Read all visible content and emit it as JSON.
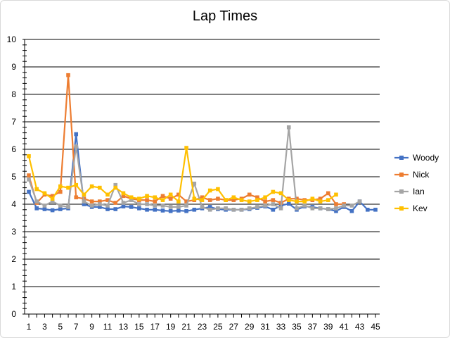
{
  "chart_data": {
    "type": "line",
    "title": "Lap Times",
    "xlabel": "",
    "ylabel": "",
    "xlim": [
      1,
      45
    ],
    "ylim": [
      0,
      10
    ],
    "y_ticks": [
      0,
      1,
      2,
      3,
      4,
      5,
      6,
      7,
      8,
      9,
      10
    ],
    "x_ticks": [
      1,
      3,
      5,
      7,
      9,
      11,
      13,
      15,
      17,
      19,
      21,
      23,
      25,
      27,
      29,
      31,
      33,
      35,
      37,
      39,
      41,
      43,
      45
    ],
    "grid": true,
    "legend": "right",
    "series": [
      {
        "name": "Woody",
        "color": "#4472c4",
        "marker": "square",
        "x": [
          1,
          2,
          3,
          4,
          5,
          6,
          7,
          8,
          9,
          10,
          11,
          12,
          13,
          14,
          15,
          16,
          17,
          18,
          19,
          20,
          21,
          22,
          23,
          24,
          25,
          26,
          27,
          28,
          29,
          30,
          31,
          32,
          33,
          34,
          35,
          36,
          37,
          38,
          39,
          40,
          41,
          42,
          43,
          44,
          45
        ],
        "values": [
          4.45,
          3.85,
          3.82,
          3.78,
          3.82,
          3.85,
          6.55,
          4.0,
          3.9,
          3.9,
          3.82,
          3.82,
          3.92,
          3.9,
          3.85,
          3.8,
          3.8,
          3.77,
          3.75,
          3.77,
          3.75,
          3.8,
          3.85,
          3.9,
          3.82,
          3.8,
          3.8,
          3.8,
          3.82,
          3.87,
          3.92,
          3.8,
          3.95,
          4.02,
          3.8,
          3.92,
          3.9,
          3.85,
          3.82,
          3.75,
          3.9,
          3.75,
          4.1,
          3.8,
          3.8
        ]
      },
      {
        "name": "Nick",
        "color": "#ed7d31",
        "marker": "square",
        "x": [
          1,
          2,
          3,
          4,
          5,
          6,
          7,
          8,
          9,
          10,
          11,
          12,
          13,
          14,
          15,
          16,
          17,
          18,
          19,
          20,
          21,
          22,
          23,
          24,
          25,
          26,
          27,
          28,
          29,
          30,
          31,
          32,
          33,
          34,
          35,
          36,
          37,
          38,
          39,
          40,
          41
        ],
        "values": [
          5.05,
          4.05,
          4.35,
          4.3,
          4.45,
          8.7,
          4.25,
          4.2,
          4.1,
          4.1,
          4.15,
          4.05,
          4.3,
          4.2,
          4.15,
          4.15,
          4.1,
          4.3,
          4.2,
          4.35,
          4.1,
          4.15,
          4.25,
          4.15,
          4.2,
          4.15,
          4.15,
          4.2,
          4.35,
          4.25,
          4.1,
          4.15,
          4.05,
          4.2,
          4.2,
          4.15,
          4.15,
          4.2,
          4.4,
          4.0,
          4.0
        ]
      },
      {
        "name": "Ian",
        "color": "#a5a5a5",
        "marker": "square",
        "x": [
          1,
          2,
          3,
          4,
          5,
          6,
          7,
          8,
          9,
          10,
          11,
          12,
          13,
          14,
          15,
          16,
          17,
          18,
          19,
          20,
          21,
          22,
          23,
          24,
          25,
          26,
          27,
          28,
          29,
          30,
          31,
          32,
          33,
          34,
          35,
          36,
          37,
          38,
          39,
          40,
          41,
          42,
          43
        ],
        "values": [
          4.9,
          4.1,
          3.95,
          4.1,
          3.95,
          3.9,
          6.1,
          4.1,
          3.95,
          4.0,
          3.95,
          4.7,
          4.05,
          4.15,
          4.0,
          4.0,
          3.95,
          3.95,
          3.9,
          3.9,
          3.95,
          4.75,
          3.9,
          3.8,
          3.85,
          3.85,
          3.8,
          3.8,
          3.85,
          3.9,
          3.95,
          4.0,
          3.85,
          6.8,
          3.85,
          3.95,
          3.85,
          3.85,
          3.82,
          3.85,
          3.95,
          3.95,
          4.1
        ]
      },
      {
        "name": "Kev",
        "color": "#ffc000",
        "marker": "square",
        "x": [
          1,
          2,
          3,
          4,
          5,
          6,
          7,
          8,
          9,
          10,
          11,
          12,
          13,
          14,
          15,
          16,
          17,
          18,
          19,
          20,
          21,
          22,
          23,
          24,
          25,
          26,
          27,
          28,
          29,
          30,
          31,
          32,
          33,
          34,
          35,
          36,
          37,
          38,
          39,
          40
        ],
        "values": [
          5.75,
          4.55,
          4.4,
          4.2,
          4.65,
          4.6,
          4.7,
          4.35,
          4.65,
          4.6,
          4.35,
          4.6,
          4.4,
          4.25,
          4.2,
          4.3,
          4.25,
          4.15,
          4.35,
          4.1,
          6.05,
          4.2,
          4.15,
          4.5,
          4.55,
          4.15,
          4.25,
          4.15,
          4.1,
          4.15,
          4.25,
          4.45,
          4.4,
          4.15,
          4.1,
          4.1,
          4.2,
          4.1,
          4.15,
          4.35
        ]
      }
    ]
  }
}
